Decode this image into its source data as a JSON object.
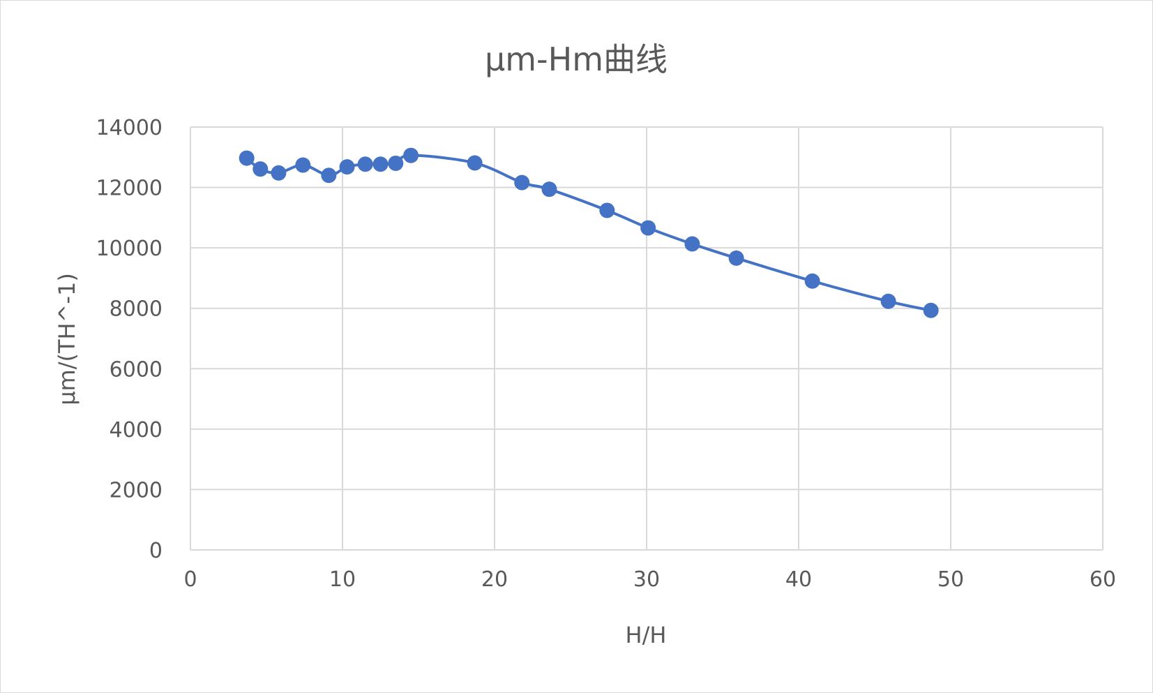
{
  "chart_data": {
    "type": "scatter",
    "title": "μm-Hm曲线",
    "xlabel": "H/H",
    "ylabel": "μm/(TH^-1)",
    "xlim": [
      0,
      60
    ],
    "ylim": [
      0,
      14000
    ],
    "x_ticks": [
      "0",
      "10",
      "20",
      "30",
      "40",
      "50",
      "60"
    ],
    "y_ticks": [
      "0",
      "2000",
      "4000",
      "6000",
      "8000",
      "10000",
      "12000",
      "14000"
    ],
    "grid": true,
    "legend": "none",
    "series": [
      {
        "style": "smooth-line-with-markers",
        "x": [
          3.7,
          4.6,
          5.8,
          7.4,
          9.1,
          10.3,
          11.5,
          12.5,
          13.5,
          14.5,
          18.7,
          21.8,
          23.6,
          27.4,
          30.1,
          33.0,
          35.9,
          40.9,
          45.9,
          48.7
        ],
        "y": [
          12970,
          12610,
          12480,
          12740,
          12400,
          12680,
          12770,
          12770,
          12800,
          13060,
          12810,
          12160,
          11940,
          11240,
          10660,
          10130,
          9660,
          8900,
          8230,
          7930
        ]
      }
    ],
    "colors": {
      "series": "#4472c4",
      "grid": "#d9d9d9",
      "text": "#595959"
    }
  }
}
